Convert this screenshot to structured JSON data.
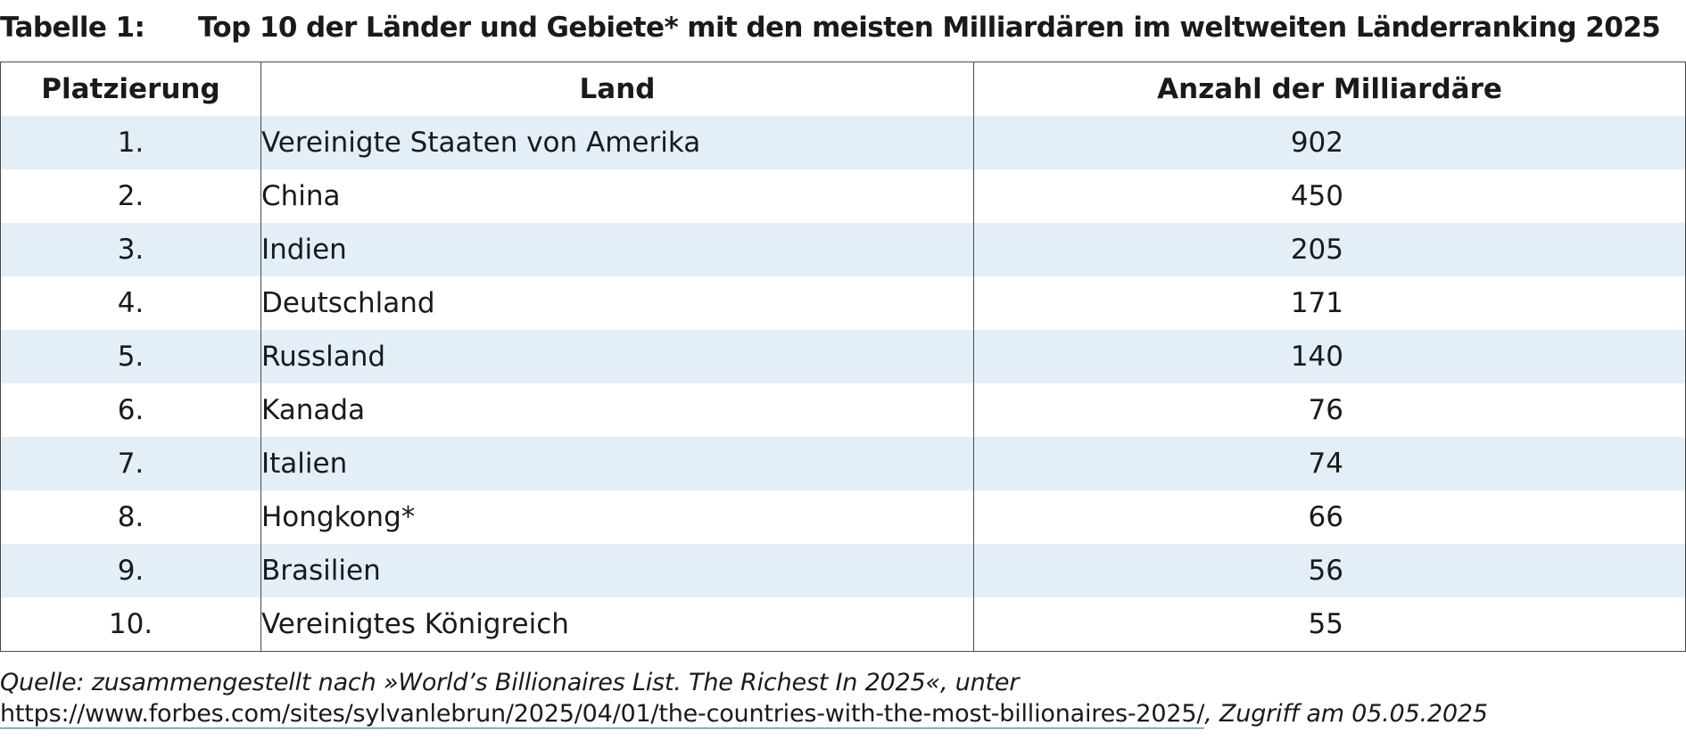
{
  "title": {
    "label": "Tabelle 1:",
    "text": "Top 10 der Länder und Gebiete* mit den meisten Milliardären im weltweiten Länderranking 2025"
  },
  "table": {
    "headers": [
      "Platzierung",
      "Land",
      "Anzahl der Milliardäre"
    ],
    "rows": [
      {
        "rank": "1.",
        "country": "Vereinigte Staaten von Amerika",
        "count": "902"
      },
      {
        "rank": "2.",
        "country": "China",
        "count": "450"
      },
      {
        "rank": "3.",
        "country": "Indien",
        "count": "205"
      },
      {
        "rank": "4.",
        "country": "Deutschland",
        "count": "171"
      },
      {
        "rank": "5.",
        "country": "Russland",
        "count": "140"
      },
      {
        "rank": "6.",
        "country": "Kanada",
        "count": "76"
      },
      {
        "rank": "7.",
        "country": "Italien",
        "count": "74"
      },
      {
        "rank": "8.",
        "country": "Hongkong*",
        "count": "66"
      },
      {
        "rank": "9.",
        "country": "Brasilien",
        "count": "56"
      },
      {
        "rank": "10.",
        "country": "Vereinigtes Königreich",
        "count": "55"
      }
    ]
  },
  "source": {
    "prefix": "Quelle: zusammengestellt nach »World’s Billionaires List. The Richest In 2025«, unter ",
    "link": "https://www.forbes.com/sites/sylvanlebrun/2025/04/01/the-countries-with-the-most-billionaires-2025/",
    "suffix": ", Zugriff am 05.05.2025"
  },
  "colors": {
    "row_stripe": "#e3eef7",
    "border": "#4a4a4a",
    "link_underline": "#2a6fa0"
  }
}
